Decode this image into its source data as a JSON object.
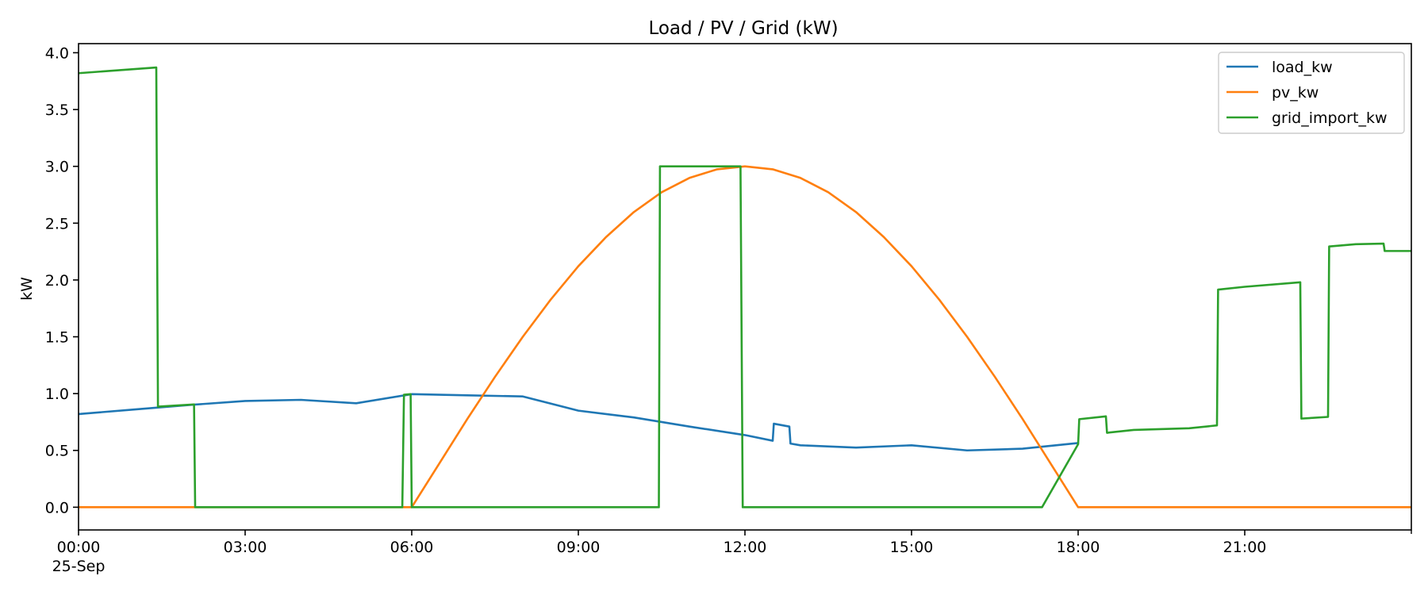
{
  "chart_data": {
    "type": "line",
    "title": "Load / PV / Grid (kW)",
    "xlabel": "",
    "ylabel": "kW",
    "xlim_hours": [
      0,
      24
    ],
    "ylim": [
      -0.2,
      4.08
    ],
    "yticks": [
      0.0,
      0.5,
      1.0,
      1.5,
      2.0,
      2.5,
      3.0,
      3.5,
      4.0
    ],
    "ytick_labels": [
      "0.0",
      "0.5",
      "1.0",
      "1.5",
      "2.0",
      "2.5",
      "3.0",
      "3.5",
      "4.0"
    ],
    "xticks_hours": [
      0,
      3,
      6,
      9,
      12,
      15,
      18,
      21
    ],
    "xtick_labels": [
      "00:00",
      "03:00",
      "06:00",
      "09:00",
      "12:00",
      "15:00",
      "18:00",
      "21:00"
    ],
    "date_label": "25-Sep",
    "legend_position": "top-right",
    "series": [
      {
        "name": "load_kw",
        "color": "#1f77b4",
        "points": [
          [
            0,
            0.82
          ],
          [
            1,
            0.86
          ],
          [
            2,
            0.9
          ],
          [
            3,
            0.935
          ],
          [
            4,
            0.945
          ],
          [
            5,
            0.915
          ],
          [
            6,
            0.995
          ],
          [
            7,
            0.985
          ],
          [
            8,
            0.975
          ],
          [
            9,
            0.85
          ],
          [
            10,
            0.79
          ],
          [
            11,
            0.71
          ],
          [
            12,
            0.635
          ],
          [
            12.5,
            0.585
          ],
          [
            12.52,
            0.735
          ],
          [
            12.8,
            0.71
          ],
          [
            12.82,
            0.56
          ],
          [
            13,
            0.545
          ],
          [
            14,
            0.525
          ],
          [
            15,
            0.545
          ],
          [
            16,
            0.5
          ],
          [
            17,
            0.515
          ],
          [
            18,
            0.565
          ]
        ]
      },
      {
        "name": "pv_kw",
        "color": "#ff7f0e",
        "points": [
          [
            0,
            0
          ],
          [
            6,
            0
          ],
          [
            6.5,
            0.388
          ],
          [
            7,
            0.776
          ],
          [
            7.5,
            1.148
          ],
          [
            8,
            1.5
          ],
          [
            8.5,
            1.826
          ],
          [
            9,
            2.121
          ],
          [
            9.5,
            2.378
          ],
          [
            10,
            2.598
          ],
          [
            10.5,
            2.772
          ],
          [
            11,
            2.898
          ],
          [
            11.5,
            2.974
          ],
          [
            12,
            3.0
          ],
          [
            12.5,
            2.974
          ],
          [
            13,
            2.898
          ],
          [
            13.5,
            2.772
          ],
          [
            14,
            2.598
          ],
          [
            14.5,
            2.378
          ],
          [
            15,
            2.121
          ],
          [
            15.5,
            1.826
          ],
          [
            16,
            1.5
          ],
          [
            16.5,
            1.148
          ],
          [
            17,
            0.776
          ],
          [
            17.5,
            0.388
          ],
          [
            18,
            0
          ],
          [
            24,
            0
          ]
        ]
      },
      {
        "name": "grid_import_kw",
        "color": "#2ca02c",
        "points": [
          [
            0,
            3.82
          ],
          [
            1.4,
            3.87
          ],
          [
            1.43,
            0.885
          ],
          [
            2.08,
            0.905
          ],
          [
            2.1,
            0
          ],
          [
            5.83,
            0
          ],
          [
            5.86,
            0.99
          ],
          [
            5.98,
            0.995
          ],
          [
            6.0,
            0
          ],
          [
            10.45,
            0
          ],
          [
            10.47,
            3.0
          ],
          [
            11.92,
            3.0
          ],
          [
            11.96,
            0
          ],
          [
            17.35,
            0
          ],
          [
            18.0,
            0.555
          ],
          [
            18.02,
            0.775
          ],
          [
            18.5,
            0.8
          ],
          [
            18.52,
            0.655
          ],
          [
            19,
            0.68
          ],
          [
            20,
            0.695
          ],
          [
            20.5,
            0.72
          ],
          [
            20.52,
            1.915
          ],
          [
            21,
            1.94
          ],
          [
            22,
            1.98
          ],
          [
            22.02,
            0.78
          ],
          [
            22.5,
            0.795
          ],
          [
            22.52,
            2.295
          ],
          [
            23,
            2.315
          ],
          [
            23.5,
            2.32
          ],
          [
            23.52,
            2.255
          ],
          [
            24,
            2.255
          ]
        ]
      }
    ]
  }
}
